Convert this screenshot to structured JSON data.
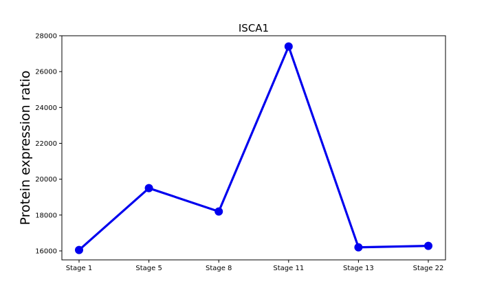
{
  "chart_data": {
    "type": "line",
    "title": "ISCA1",
    "xlabel": "",
    "ylabel": "Protein expression ratio",
    "categories": [
      "Stage 1",
      "Stage 5",
      "Stage 8",
      "Stage 11",
      "Stage 13",
      "Stage 22"
    ],
    "series": [
      {
        "name": "",
        "values": [
          16050,
          19500,
          18200,
          27400,
          16200,
          16280
        ],
        "color": "#0000ee",
        "marker": "circle"
      }
    ],
    "ylim": [
      15500,
      28000
    ],
    "yticks": [
      16000,
      18000,
      20000,
      22000,
      24000,
      26000,
      28000
    ],
    "grid": false
  }
}
